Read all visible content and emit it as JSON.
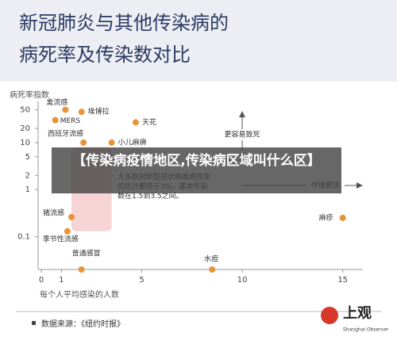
{
  "header": {
    "title": [
      "新冠肺炎与其他传染病的",
      "病死率及传染数对比"
    ]
  },
  "chart_data": {
    "type": "scatter",
    "y_axis_label": "病死率指数",
    "x_axis_label": "每个人平均感染的人数",
    "labels": [
      "禽流感",
      "埃博拉",
      "MERS",
      "天花",
      "西班牙流感",
      "小儿麻痹",
      "猪流感",
      "季节性流感",
      "普通感冒",
      "水痘",
      "麻疹"
    ],
    "x": [
      1.2,
      2,
      0.7,
      4.7,
      2.1,
      3.5,
      1.5,
      1.3,
      2,
      8.5,
      15
    ],
    "values": [
      50,
      45,
      30,
      27,
      10,
      10,
      0.26,
      0.13,
      0.02,
      0.02,
      0.25
    ],
    "color": "#e8953a",
    "log_y": true,
    "xlim": [
      0,
      16
    ],
    "xticks": [
      0,
      1,
      5,
      10,
      15
    ],
    "ylim": [
      0.02,
      75
    ],
    "yticks": [
      50,
      20,
      10,
      5,
      2,
      1,
      0.1
    ],
    "covid_range": {
      "x": [
        1.5,
        3.5
      ],
      "y": [
        0.13,
        8
      ]
    },
    "covid_note": "大多数对新型冠状病毒病死率的估计都低于3%，基本传染数在1.5到3.5之间。",
    "arrow_up_label": "更容易致死",
    "arrow_right_label": "传播更快"
  },
  "overlay": {
    "text": "【传染病疫情地区,传染病区域叫什么区】"
  },
  "source": "数据来源：《纽约时报》",
  "logo": {
    "name": "上观",
    "subtitle": "Shanghai Observer"
  }
}
